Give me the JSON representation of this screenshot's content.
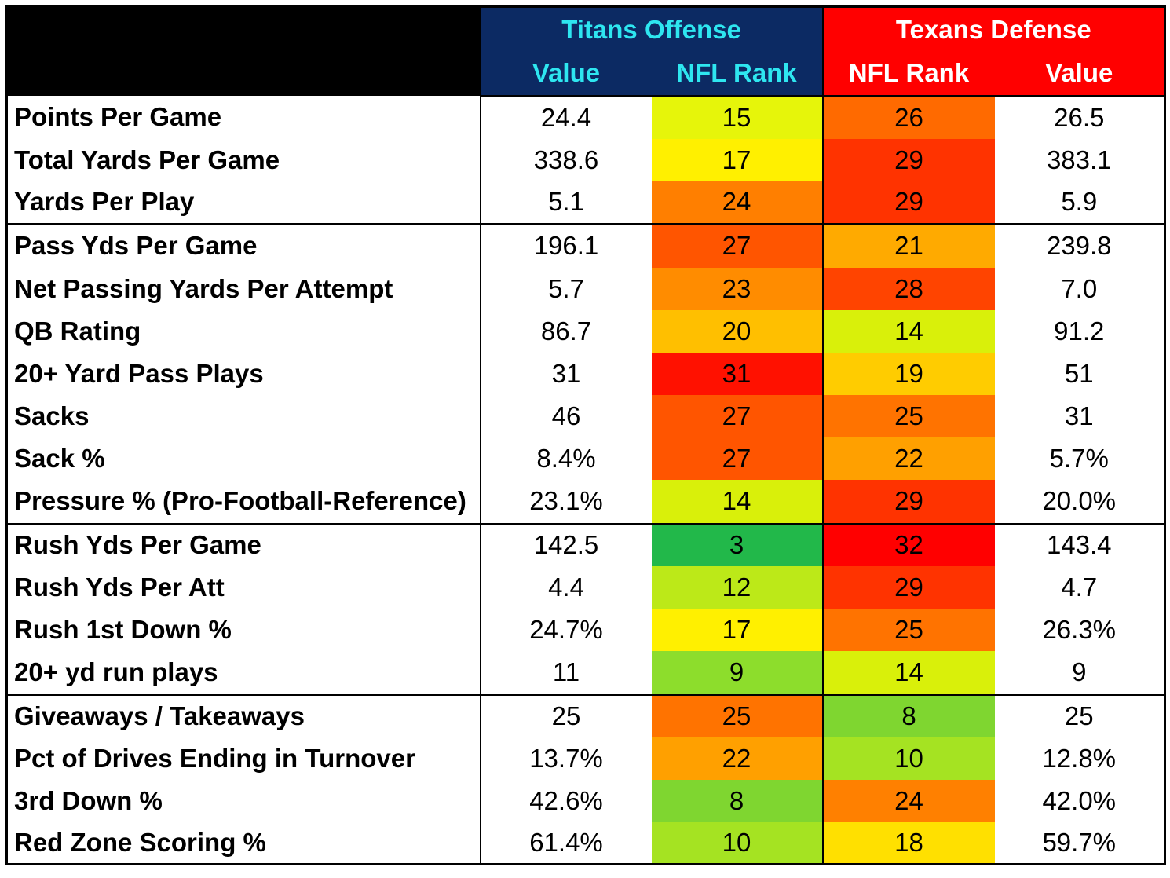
{
  "header": {
    "offense_team": "Titans Offense",
    "defense_team": "Texans Defense",
    "col_value": "Value",
    "col_rank": "NFL Rank"
  },
  "rows": [
    {
      "metric": "Points Per Game",
      "off_value": "24.4",
      "off_rank": "15",
      "def_rank": "26",
      "def_value": "26.5",
      "off_color": "#e6f50a",
      "def_color": "#ff6a00"
    },
    {
      "metric": "Total Yards Per Game",
      "off_value": "338.6",
      "off_rank": "17",
      "def_rank": "29",
      "def_value": "383.1",
      "off_color": "#fff000",
      "def_color": "#ff3300"
    },
    {
      "metric": "Yards Per Play",
      "off_value": "5.1",
      "off_rank": "24",
      "def_rank": "29",
      "def_value": "5.9",
      "off_color": "#ff7f00",
      "def_color": "#ff3300"
    },
    {
      "metric": "Pass Yds Per Game",
      "off_value": "196.1",
      "off_rank": "27",
      "def_rank": "21",
      "def_value": "239.8",
      "off_color": "#ff5500",
      "def_color": "#ffaa00"
    },
    {
      "metric": "Net Passing Yards Per Attempt",
      "off_value": "5.7",
      "off_rank": "23",
      "def_rank": "28",
      "def_value": "7.0",
      "off_color": "#ff8c00",
      "def_color": "#ff4400"
    },
    {
      "metric": "QB Rating",
      "off_value": "86.7",
      "off_rank": "20",
      "def_rank": "14",
      "def_value": "91.2",
      "off_color": "#ffbf00",
      "def_color": "#d9f00a"
    },
    {
      "metric": "20+ Yard Pass Plays",
      "off_value": "31",
      "off_rank": "31",
      "def_rank": "19",
      "def_value": "51",
      "off_color": "#ff1100",
      "def_color": "#ffcc00"
    },
    {
      "metric": "Sacks",
      "off_value": "46",
      "off_rank": "27",
      "def_rank": "25",
      "def_value": "31",
      "off_color": "#ff5500",
      "def_color": "#ff7300"
    },
    {
      "metric": "Sack %",
      "off_value": "8.4%",
      "off_rank": "27",
      "def_rank": "22",
      "def_value": "5.7%",
      "off_color": "#ff5500",
      "def_color": "#ffa000"
    },
    {
      "metric": "Pressure % (Pro-Football-Reference)",
      "off_value": "23.1%",
      "off_rank": "14",
      "def_rank": "29",
      "def_value": "20.0%",
      "off_color": "#d9f00a",
      "def_color": "#ff3300"
    },
    {
      "metric": "Rush Yds Per Game",
      "off_value": "142.5",
      "off_rank": "3",
      "def_rank": "32",
      "def_value": "143.4",
      "off_color": "#22b84a",
      "def_color": "#ff0000"
    },
    {
      "metric": "Rush Yds Per Att",
      "off_value": "4.4",
      "off_rank": "12",
      "def_rank": "29",
      "def_value": "4.7",
      "off_color": "#bce918",
      "def_color": "#ff3300"
    },
    {
      "metric": "Rush 1st Down %",
      "off_value": "24.7%",
      "off_rank": "17",
      "def_rank": "25",
      "def_value": "26.3%",
      "off_color": "#fff000",
      "def_color": "#ff7300"
    },
    {
      "metric": "20+ yd run plays",
      "off_value": "11",
      "off_rank": "9",
      "def_rank": "14",
      "def_value": "9",
      "off_color": "#8ddd2c",
      "def_color": "#d9f00a"
    },
    {
      "metric": "Giveaways / Takeaways",
      "off_value": "25",
      "off_rank": "25",
      "def_rank": "8",
      "def_value": "25",
      "off_color": "#ff7300",
      "def_color": "#7fd630"
    },
    {
      "metric": "Pct of Drives Ending in Turnover",
      "off_value": "13.7%",
      "off_rank": "22",
      "def_rank": "10",
      "def_value": "12.8%",
      "off_color": "#ffa000",
      "def_color": "#a5e322"
    },
    {
      "metric": "3rd Down %",
      "off_value": "42.6%",
      "off_rank": "8",
      "def_rank": "24",
      "def_value": "42.0%",
      "off_color": "#7fd630",
      "def_color": "#ff8000"
    },
    {
      "metric": "Red Zone Scoring %",
      "off_value": "61.4%",
      "off_rank": "10",
      "def_rank": "18",
      "def_value": "59.7%",
      "off_color": "#a5e322",
      "def_color": "#ffe000"
    }
  ]
}
